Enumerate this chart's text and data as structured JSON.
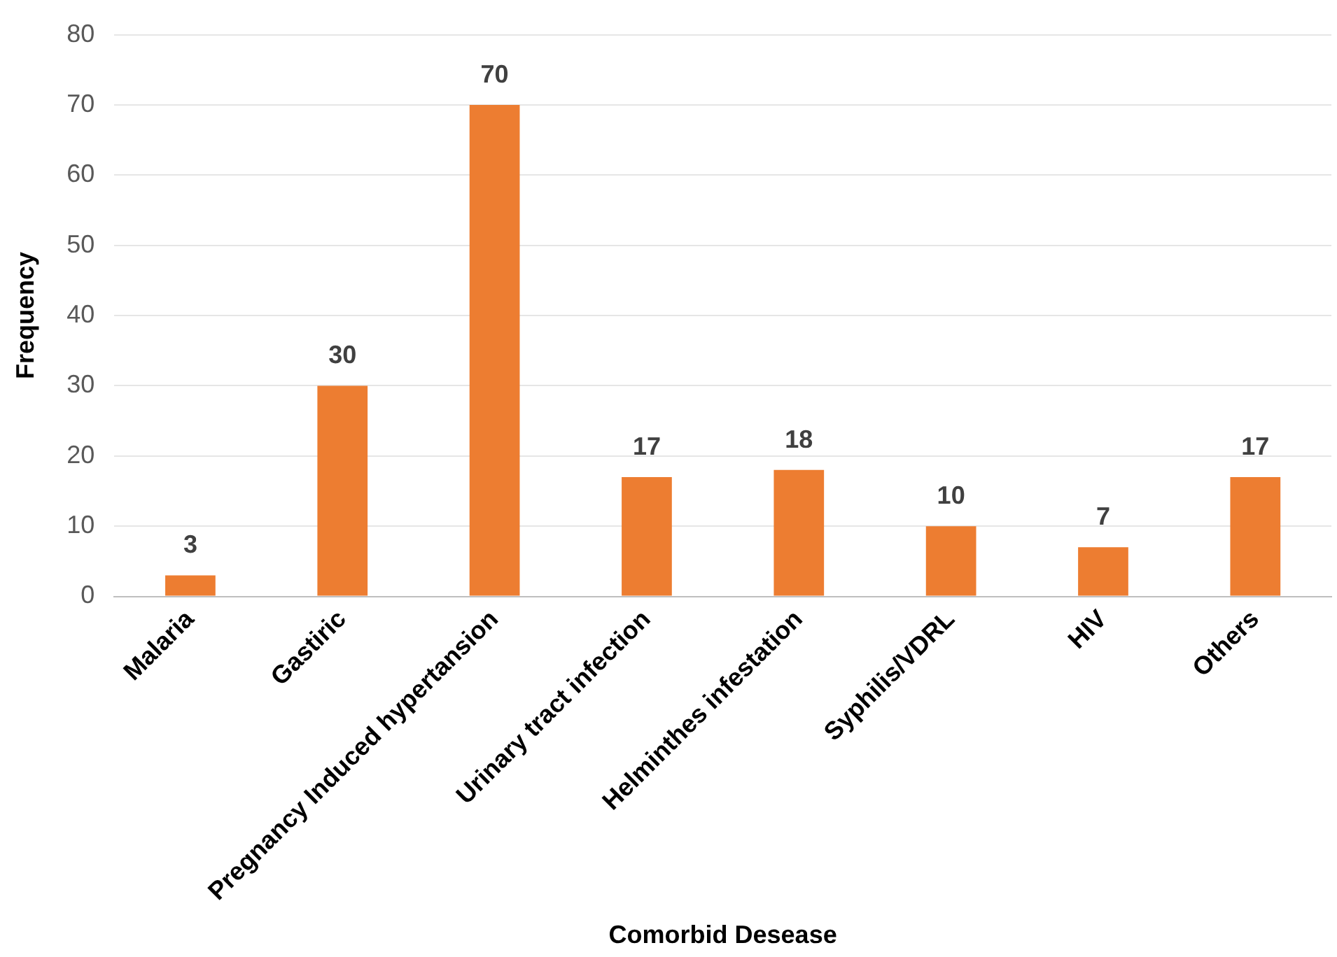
{
  "chart_data": {
    "type": "bar",
    "xlabel": "Comorbid Desease",
    "ylabel": "Frequency",
    "categories": [
      "Malaria",
      "Gastiric",
      "Pregnancy Induced hypertansion",
      "Urinary tract infection",
      "Helminthes infestation",
      "Syphilis/VDRL",
      "HIV",
      "Others"
    ],
    "values": [
      3,
      30,
      70,
      17,
      18,
      10,
      7,
      17
    ],
    "color": "#ed7d31",
    "ylim": [
      0,
      80
    ],
    "yticks": [
      0,
      10,
      20,
      30,
      40,
      50,
      60,
      70,
      80
    ],
    "grid": "y",
    "data_labels": true
  }
}
